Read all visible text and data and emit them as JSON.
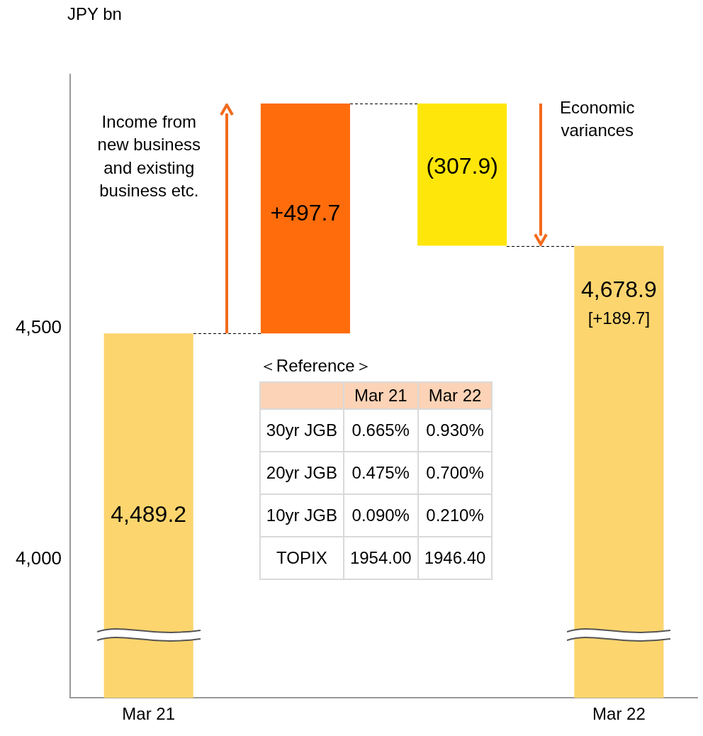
{
  "chart_data": {
    "type": "bar",
    "ylabel": "JPY bn",
    "categories": [
      "Mar 21",
      null,
      null,
      "Mar 22"
    ],
    "values": [
      4489.2,
      497.7,
      -307.9,
      4678.9
    ],
    "base": [
      null,
      4489.2,
      4986.9,
      null
    ],
    "colors": [
      "#fcd56e",
      "#fe6c0c",
      "#ffe60a",
      "#fcd56e"
    ],
    "value_labels": [
      "4,489.2",
      "+497.7",
      "(307.9)",
      "4,678.9"
    ],
    "ylim": [
      3700,
      5050
    ],
    "yticks": [
      {
        "value": 4000,
        "label": "4,000"
      },
      {
        "value": 4500,
        "label": "4,500"
      }
    ],
    "grid": false,
    "legend": false,
    "annotations": [
      "Income from new business and existing business etc.",
      "Economic variances",
      "[+189.7]",
      "＜Reference＞",
      "Mar 21",
      "Mar 22",
      "30yr JGB",
      "0.665%",
      "0.930%",
      "20yr JGB",
      "0.475%",
      "0.700%",
      "10yr JGB",
      "0.090%",
      "0.210%",
      "TOPIX",
      "1954.00",
      "1946.40"
    ]
  }
}
